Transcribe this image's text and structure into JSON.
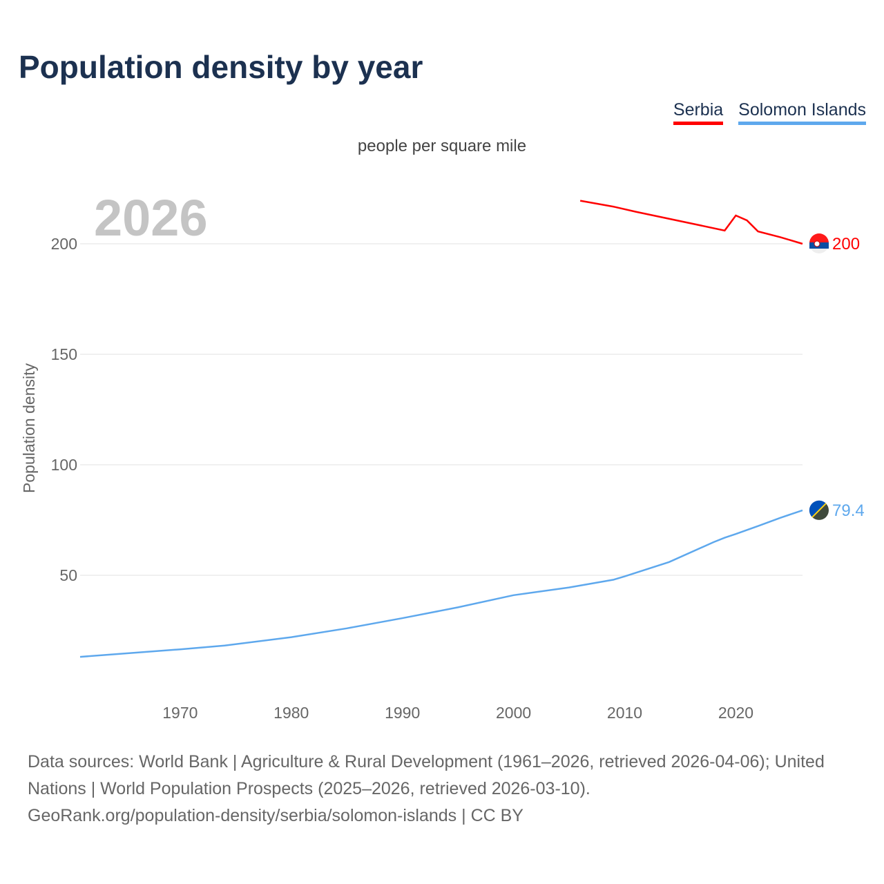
{
  "title": "Population density by year",
  "unit_label": "people per square mile",
  "footer": {
    "sources": "Data sources: World Bank | Agriculture & Rural Development (1961–2026, retrieved 2026-04-06); United Nations | World Population Prospects (2025–2026, retrieved 2026-03-10).",
    "link": "GeoRank.org/population-density/serbia/solomon-islands | CC BY"
  },
  "chart_data": {
    "type": "line",
    "title": "Population density by year",
    "year_label": "2026",
    "xlabel": "",
    "ylabel": "Population density",
    "xlim": [
      1961,
      2026
    ],
    "ylim": [
      0,
      230
    ],
    "xticks": [
      1970,
      1980,
      1990,
      2000,
      2010,
      2020
    ],
    "yticks": [
      50,
      100,
      150,
      200
    ],
    "grid": true,
    "legend_placement": "top-right",
    "series": [
      {
        "name": "Serbia",
        "color": "#ff0000",
        "end_label": "200",
        "x": [
          2006,
          2009,
          2011,
          2019,
          2020,
          2021,
          2022,
          2024,
          2026
        ],
        "y": [
          219.5,
          216.8,
          214.5,
          206,
          212.8,
          210.6,
          205.6,
          203,
          200
        ]
      },
      {
        "name": "Solomon Islands",
        "color": "#5ea8ed",
        "end_label": "79.4",
        "x": [
          1961,
          1965,
          1970,
          1974,
          1980,
          1985,
          1990,
          1995,
          2000,
          2005,
          2009,
          2010,
          2014,
          2018,
          2019,
          2020,
          2022,
          2024,
          2026
        ],
        "y": [
          13.1,
          14.6,
          16.5,
          18.2,
          22,
          26,
          30.6,
          35.5,
          41,
          44.5,
          48,
          49.5,
          56,
          65,
          67,
          68.7,
          72.3,
          76,
          79.4
        ]
      }
    ]
  }
}
